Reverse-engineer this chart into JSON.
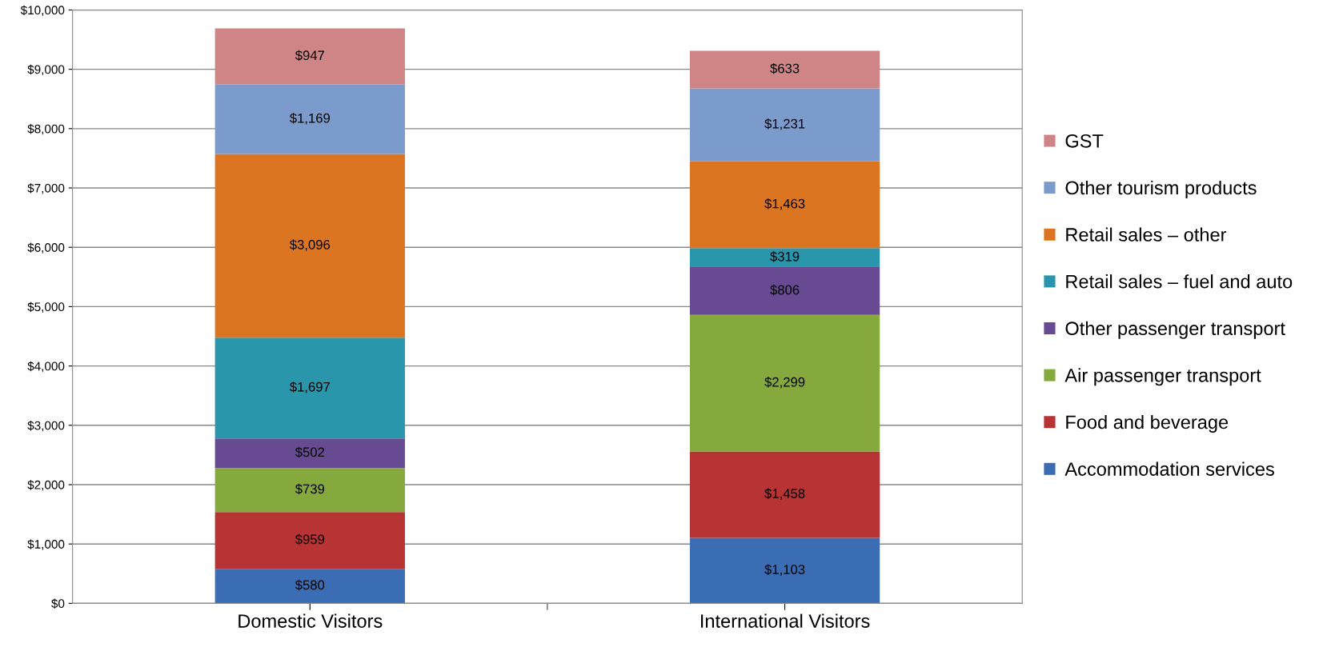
{
  "chart_data": {
    "type": "bar",
    "stacked": true,
    "categories": [
      "Domestic Visitors",
      "International Visitors"
    ],
    "series": [
      {
        "name": "Accommodation services",
        "color": "#3a6db3",
        "values": [
          580,
          1103
        ],
        "value_labels": [
          "$580",
          "$1,103"
        ]
      },
      {
        "name": "Food and beverage",
        "color": "#b83333",
        "values": [
          959,
          1458
        ],
        "value_labels": [
          "$959",
          "$1,458"
        ]
      },
      {
        "name": "Air passenger transport",
        "color": "#86a93e",
        "values": [
          739,
          2299
        ],
        "value_labels": [
          "$739",
          "$2,299"
        ]
      },
      {
        "name": "Other passenger transport",
        "color": "#674a91",
        "values": [
          502,
          806
        ],
        "value_labels": [
          "$502",
          "$806"
        ]
      },
      {
        "name": "Retail sales – fuel and auto",
        "color": "#2a96ac",
        "values": [
          1697,
          319
        ],
        "value_labels": [
          "$1,697",
          "$319"
        ]
      },
      {
        "name": "Retail sales – other",
        "color": "#dc7522",
        "values": [
          3096,
          1463
        ],
        "value_labels": [
          "$3,096",
          "$1,463"
        ]
      },
      {
        "name": "Other tourism products",
        "color": "#7c9bcd",
        "values": [
          1169,
          1231
        ],
        "value_labels": [
          "$1,169",
          "$1,231"
        ]
      },
      {
        "name": "GST",
        "color": "#cf8585",
        "values": [
          947,
          633
        ],
        "value_labels": [
          "$947",
          "$633"
        ]
      }
    ],
    "ylim": [
      0,
      10000
    ],
    "yticks": [
      {
        "value": 0,
        "label": "$0"
      },
      {
        "value": 1000,
        "label": "$1,000"
      },
      {
        "value": 2000,
        "label": "$2,000"
      },
      {
        "value": 3000,
        "label": "$3,000"
      },
      {
        "value": 4000,
        "label": "$4,000"
      },
      {
        "value": 5000,
        "label": "$5,000"
      },
      {
        "value": 6000,
        "label": "$6,000"
      },
      {
        "value": 7000,
        "label": "$7,000"
      },
      {
        "value": 8000,
        "label": "$8,000"
      },
      {
        "value": 9000,
        "label": "$9,000"
      },
      {
        "value": 10000,
        "label": "$10,000"
      }
    ],
    "grid": "y",
    "legend": "right"
  }
}
